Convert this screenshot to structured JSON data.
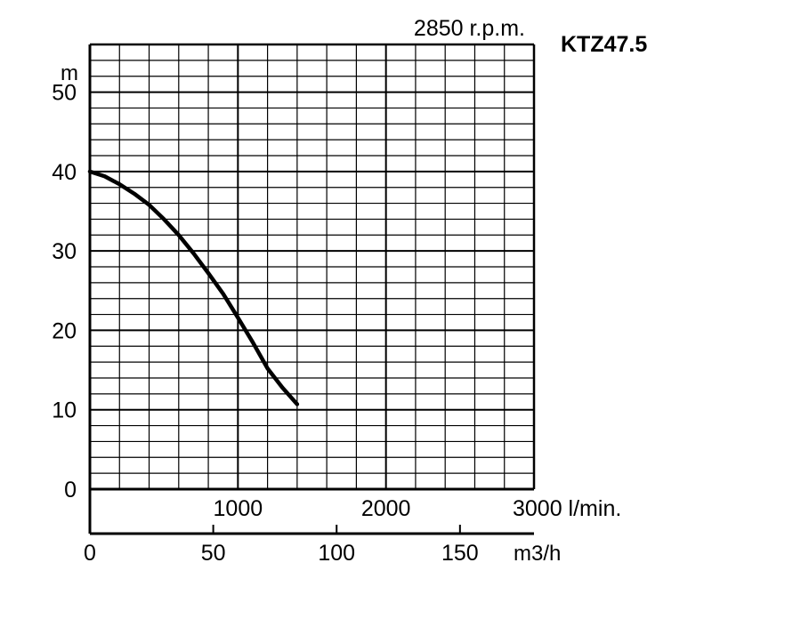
{
  "chart_data": {
    "type": "line",
    "speed_label": "2850 r.p.m.",
    "model_label": "KTZ47.5",
    "ylabel": "m",
    "ylim": [
      0,
      56
    ],
    "yticks": [
      0,
      10,
      20,
      30,
      40,
      50
    ],
    "grid": true,
    "x_primary": {
      "unit": "l/min.",
      "range": [
        0,
        3000
      ],
      "ticks": [
        "1000",
        "2000",
        "3000 l/min."
      ],
      "tick_values": [
        1000,
        2000,
        3000
      ]
    },
    "x_secondary": {
      "unit": "m3/h",
      "range": [
        0,
        180
      ],
      "ticks": [
        "0",
        "50",
        "100",
        "150"
      ],
      "tick_values": [
        0,
        50,
        100,
        150
      ],
      "label": "m3/h"
    },
    "series": [
      {
        "x": [
          0,
          100,
          200,
          300,
          400,
          500,
          600,
          700,
          800,
          900,
          1000,
          1100,
          1200,
          1300,
          1400
        ],
        "y": [
          40,
          39.4,
          38.4,
          37.2,
          35.8,
          34,
          32,
          29.7,
          27.2,
          24.6,
          21.6,
          18.5,
          15.2,
          12.8,
          10.7
        ]
      }
    ],
    "x_series_values_in": "l/min."
  }
}
